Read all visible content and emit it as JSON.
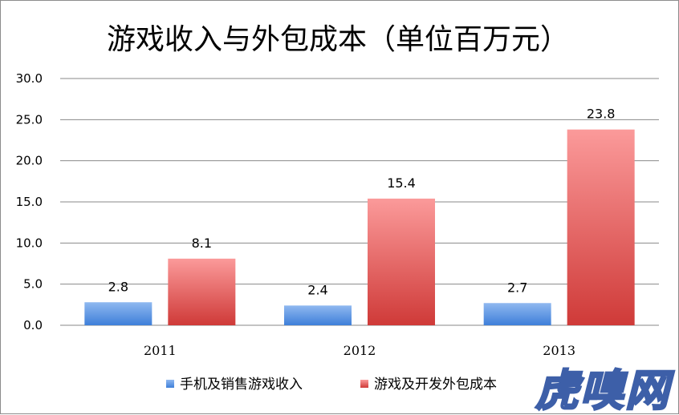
{
  "watermark": "虎嗅网",
  "chart_data": {
    "type": "bar",
    "title": "游戏收入与外包成本（单位百万元）",
    "categories": [
      "2011",
      "2012",
      "2013"
    ],
    "series": [
      {
        "name": "手机及销售游戏收入",
        "values": [
          2.8,
          2.4,
          2.7
        ],
        "labels": [
          "2.8",
          "2.4",
          "2.7"
        ],
        "color_top": "#8fb8f0",
        "color_bottom": "#3e7fd9"
      },
      {
        "name": "游戏及开发外包成本",
        "values": [
          8.1,
          15.4,
          23.8
        ],
        "labels": [
          "8.1",
          "15.4",
          "23.8"
        ],
        "color_top": "#fb9a9a",
        "color_bottom": "#cf3a38"
      }
    ],
    "ylim": [
      0,
      30
    ],
    "yticks": [
      "0.0",
      "5.0",
      "10.0",
      "15.0",
      "20.0",
      "25.0",
      "30.0"
    ],
    "grid": true,
    "legend": "bottom"
  }
}
